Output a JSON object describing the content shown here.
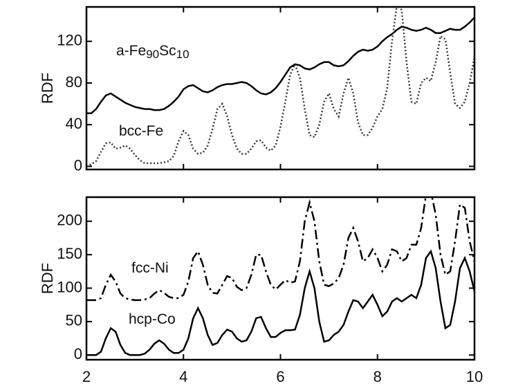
{
  "chart_data": [
    {
      "type": "line",
      "ylabel": "RDF",
      "x": [
        2.0,
        2.1,
        2.2,
        2.3,
        2.4,
        2.5,
        2.6,
        2.7,
        2.8,
        2.9,
        3.0,
        3.1,
        3.2,
        3.3,
        3.4,
        3.5,
        3.6,
        3.7,
        3.8,
        3.9,
        4.0,
        4.1,
        4.2,
        4.3,
        4.4,
        4.5,
        4.6,
        4.7,
        4.8,
        4.9,
        5.0,
        5.1,
        5.2,
        5.3,
        5.4,
        5.5,
        5.6,
        5.7,
        5.8,
        5.9,
        6.0,
        6.1,
        6.2,
        6.3,
        6.4,
        6.5,
        6.6,
        6.7,
        6.8,
        6.9,
        7.0,
        7.1,
        7.2,
        7.3,
        7.4,
        7.5,
        7.6,
        7.7,
        7.8,
        7.9,
        8.0,
        8.1,
        8.2,
        8.3,
        8.4,
        8.5,
        8.6,
        8.7,
        8.8,
        8.9,
        9.0,
        9.1,
        9.2,
        9.3,
        9.4,
        9.5,
        9.6,
        9.7,
        9.8,
        9.9,
        10.0
      ],
      "series": [
        {
          "name": [
            "a-Fe",
            "90",
            "Sc",
            "10"
          ],
          "color": "#000000",
          "linestyle": "solid",
          "values": [
            51,
            51,
            55,
            62,
            68,
            70,
            67,
            64,
            61,
            59,
            57,
            56,
            55,
            55,
            54,
            54,
            55,
            58,
            62,
            67,
            74,
            77,
            78,
            75,
            72,
            71,
            73,
            76,
            78,
            79,
            79,
            80,
            81,
            80,
            77,
            73,
            70,
            69,
            71,
            75,
            81,
            88,
            95,
            98,
            97,
            94,
            93,
            95,
            98,
            100,
            100,
            97,
            96,
            97,
            101,
            106,
            110,
            112,
            111,
            112,
            115,
            120,
            124,
            127,
            131,
            134,
            133,
            131,
            130,
            131,
            133,
            131,
            128,
            128,
            130,
            132,
            131,
            131,
            134,
            138,
            143
          ]
        },
        {
          "name": [
            "bcc-Fe"
          ],
          "color": "#333333",
          "linestyle": "dotted",
          "values": [
            0,
            2,
            5,
            14,
            22,
            23,
            17,
            18,
            20,
            17,
            11,
            6,
            3,
            3,
            3,
            3,
            4,
            5,
            10,
            24,
            34,
            30,
            17,
            12,
            13,
            20,
            36,
            55,
            60,
            48,
            30,
            17,
            12,
            12,
            17,
            24,
            25,
            18,
            15,
            20,
            38,
            62,
            88,
            98,
            85,
            55,
            30,
            28,
            40,
            62,
            70,
            55,
            48,
            70,
            85,
            70,
            42,
            30,
            30,
            37,
            48,
            55,
            75,
            120,
            155,
            150,
            100,
            62,
            60,
            80,
            85,
            82,
            100,
            125,
            122,
            90,
            60,
            56,
            62,
            80,
            105
          ]
        }
      ],
      "xlim": [
        2,
        10
      ],
      "xticks": [
        2,
        4,
        6,
        8,
        10
      ],
      "ylim": [
        -3,
        153
      ],
      "yticks": [
        0,
        40,
        80,
        120
      ]
    },
    {
      "type": "line",
      "ylabel": "RDF",
      "x": [
        2.0,
        2.1,
        2.2,
        2.3,
        2.4,
        2.5,
        2.6,
        2.7,
        2.8,
        2.9,
        3.0,
        3.1,
        3.2,
        3.3,
        3.4,
        3.5,
        3.6,
        3.7,
        3.8,
        3.9,
        4.0,
        4.1,
        4.2,
        4.3,
        4.4,
        4.5,
        4.6,
        4.7,
        4.8,
        4.9,
        5.0,
        5.1,
        5.2,
        5.3,
        5.4,
        5.5,
        5.6,
        5.7,
        5.8,
        5.9,
        6.0,
        6.1,
        6.2,
        6.3,
        6.4,
        6.5,
        6.6,
        6.7,
        6.8,
        6.9,
        7.0,
        7.1,
        7.2,
        7.3,
        7.4,
        7.5,
        7.6,
        7.7,
        7.8,
        7.9,
        8.0,
        8.1,
        8.2,
        8.3,
        8.4,
        8.5,
        8.6,
        8.7,
        8.8,
        8.9,
        9.0,
        9.1,
        9.2,
        9.3,
        9.4,
        9.5,
        9.6,
        9.7,
        9.8,
        9.9,
        10.0
      ],
      "series": [
        {
          "name": [
            "fcc-Ni"
          ],
          "color": "#000000",
          "linestyle": "dashed",
          "values": [
            82,
            82,
            82,
            85,
            105,
            120,
            110,
            92,
            85,
            83,
            82,
            82,
            83,
            85,
            92,
            97,
            93,
            87,
            85,
            85,
            90,
            110,
            145,
            155,
            135,
            105,
            93,
            92,
            105,
            118,
            115,
            102,
            97,
            100,
            120,
            150,
            150,
            125,
            105,
            98,
            105,
            112,
            108,
            110,
            140,
            200,
            228,
            200,
            140,
            105,
            103,
            107,
            115,
            135,
            175,
            190,
            170,
            140,
            145,
            158,
            145,
            125,
            135,
            158,
            155,
            140,
            145,
            165,
            165,
            190,
            240,
            245,
            210,
            150,
            120,
            125,
            170,
            225,
            220,
            170,
            140
          ]
        },
        {
          "name": [
            "hcp-Co"
          ],
          "color": "#000000",
          "linestyle": "solid",
          "values": [
            0,
            0,
            0,
            5,
            25,
            40,
            35,
            15,
            3,
            0,
            0,
            0,
            2,
            8,
            17,
            22,
            17,
            8,
            3,
            3,
            8,
            25,
            55,
            70,
            55,
            30,
            15,
            18,
            30,
            38,
            35,
            25,
            20,
            22,
            35,
            55,
            57,
            40,
            27,
            27,
            33,
            37,
            37,
            38,
            60,
            100,
            125,
            100,
            50,
            20,
            22,
            30,
            35,
            45,
            65,
            82,
            80,
            70,
            80,
            90,
            75,
            58,
            65,
            80,
            85,
            80,
            85,
            90,
            85,
            105,
            145,
            155,
            130,
            80,
            40,
            45,
            80,
            130,
            145,
            125,
            95
          ]
        }
      ],
      "xlim": [
        2,
        10
      ],
      "xticks": [
        2,
        4,
        6,
        8,
        10
      ],
      "xticklabels": true,
      "ylim": [
        -7,
        236
      ],
      "yticks": [
        0,
        50,
        100,
        150,
        200
      ]
    }
  ]
}
